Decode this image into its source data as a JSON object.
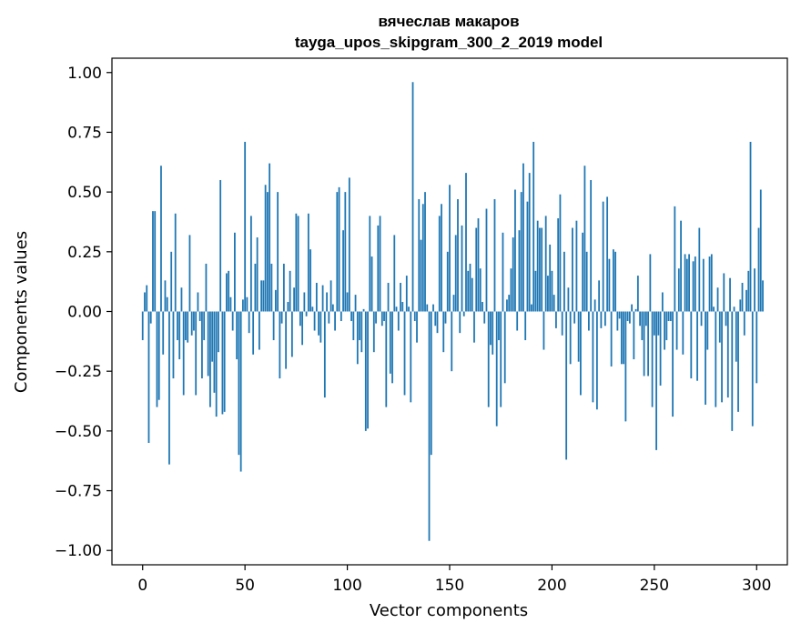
{
  "chart_data": {
    "type": "bar",
    "title": "вячеслав макаров",
    "subtitle": "tayga_upos_skipgram_300_2_2019 model",
    "xlabel": "Vector components",
    "ylabel": "Components values",
    "xlim": [
      -15,
      315
    ],
    "ylim": [
      -1.06,
      1.06
    ],
    "xticks": [
      0,
      50,
      100,
      150,
      200,
      250,
      300
    ],
    "yticks": [
      -1.0,
      -0.75,
      -0.5,
      -0.25,
      0.0,
      0.25,
      0.5,
      0.75,
      1.0
    ],
    "ytick_labels": [
      "−1.00",
      "−0.75",
      "−0.50",
      "−0.25",
      "0.00",
      "0.25",
      "0.50",
      "0.75",
      "1.00"
    ],
    "xtick_labels": [
      "0",
      "50",
      "100",
      "150",
      "200",
      "250",
      "300"
    ],
    "grid": false,
    "bar_color": "#1f77b4",
    "values": [
      -0.12,
      0.08,
      0.11,
      -0.55,
      -0.05,
      0.42,
      0.42,
      -0.4,
      -0.37,
      0.61,
      -0.18,
      0.13,
      0.06,
      -0.64,
      0.25,
      -0.28,
      0.41,
      -0.12,
      -0.2,
      0.1,
      -0.35,
      -0.12,
      -0.13,
      0.32,
      -0.1,
      -0.08,
      -0.35,
      0.08,
      -0.04,
      -0.28,
      -0.12,
      0.2,
      -0.27,
      -0.4,
      -0.21,
      -0.34,
      -0.44,
      -0.17,
      0.55,
      -0.43,
      -0.42,
      0.16,
      0.17,
      0.06,
      -0.08,
      0.33,
      -0.2,
      -0.6,
      -0.67,
      0.05,
      0.71,
      0.06,
      -0.09,
      0.4,
      -0.18,
      0.2,
      0.31,
      -0.16,
      0.13,
      0.13,
      0.53,
      0.5,
      0.62,
      0.2,
      -0.12,
      0.09,
      0.5,
      -0.28,
      -0.05,
      0.2,
      -0.24,
      0.04,
      0.17,
      -0.19,
      0.1,
      0.41,
      0.4,
      -0.06,
      -0.14,
      0.08,
      -0.02,
      0.41,
      0.26,
      0.02,
      -0.08,
      0.12,
      -0.1,
      -0.13,
      0.11,
      -0.36,
      0.08,
      -0.05,
      0.13,
      0.03,
      -0.08,
      0.5,
      0.52,
      -0.04,
      0.34,
      0.5,
      0.08,
      0.56,
      -0.04,
      -0.12,
      0.07,
      -0.22,
      -0.12,
      -0.17,
      0.01,
      -0.5,
      -0.49,
      0.4,
      0.23,
      -0.17,
      -0.05,
      0.36,
      0.4,
      -0.06,
      -0.04,
      -0.4,
      0.12,
      -0.26,
      -0.3,
      0.32,
      0.02,
      -0.08,
      0.12,
      0.04,
      -0.35,
      0.15,
      0.02,
      -0.38,
      0.96,
      -0.04,
      -0.13,
      0.47,
      0.3,
      0.45,
      0.5,
      0.03,
      -0.96,
      -0.6,
      0.03,
      -0.06,
      -0.09,
      0.4,
      0.45,
      -0.17,
      -0.05,
      0.25,
      0.53,
      -0.25,
      0.07,
      0.32,
      0.47,
      -0.09,
      0.36,
      -0.02,
      0.58,
      0.17,
      0.2,
      0.14,
      -0.13,
      0.35,
      0.39,
      0.18,
      0.04,
      -0.05,
      0.43,
      -0.4,
      -0.14,
      -0.18,
      0.47,
      -0.48,
      -0.12,
      -0.4,
      0.33,
      -0.3,
      0.05,
      0.07,
      0.18,
      0.31,
      0.51,
      -0.08,
      0.34,
      0.5,
      0.62,
      -0.12,
      0.46,
      0.58,
      0.03,
      0.71,
      0.17,
      0.38,
      0.35,
      0.35,
      -0.16,
      0.4,
      0.15,
      0.28,
      0.17,
      0.07,
      -0.07,
      0.39,
      0.49,
      -0.1,
      0.25,
      -0.62,
      0.1,
      -0.22,
      0.35,
      -0.05,
      0.38,
      -0.21,
      -0.35,
      0.33,
      0.61,
      0.25,
      -0.08,
      0.55,
      -0.38,
      0.05,
      -0.41,
      0.13,
      -0.07,
      0.46,
      -0.06,
      0.48,
      0.22,
      -0.23,
      0.26,
      0.25,
      -0.08,
      -0.03,
      -0.22,
      -0.22,
      -0.46,
      -0.04,
      -0.05,
      0.03,
      -0.2,
      0.01,
      0.15,
      -0.06,
      -0.12,
      -0.27,
      -0.06,
      -0.27,
      0.24,
      -0.4,
      -0.1,
      -0.58,
      -0.1,
      -0.31,
      0.08,
      -0.16,
      -0.12,
      -0.04,
      -0.04,
      -0.44,
      0.44,
      -0.16,
      0.18,
      0.38,
      -0.18,
      0.24,
      0.22,
      0.24,
      -0.28,
      0.21,
      0.23,
      -0.29,
      0.35,
      -0.06,
      0.22,
      -0.39,
      -0.16,
      0.23,
      0.24,
      0.02,
      -0.4,
      0.1,
      -0.13,
      -0.38,
      0.16,
      -0.06,
      -0.36,
      0.14,
      -0.5,
      0.02,
      -0.21,
      -0.42,
      0.05,
      0.12,
      -0.1,
      0.09,
      0.17,
      0.71,
      -0.48,
      0.18,
      -0.3,
      0.35,
      0.51,
      0.13
    ]
  }
}
